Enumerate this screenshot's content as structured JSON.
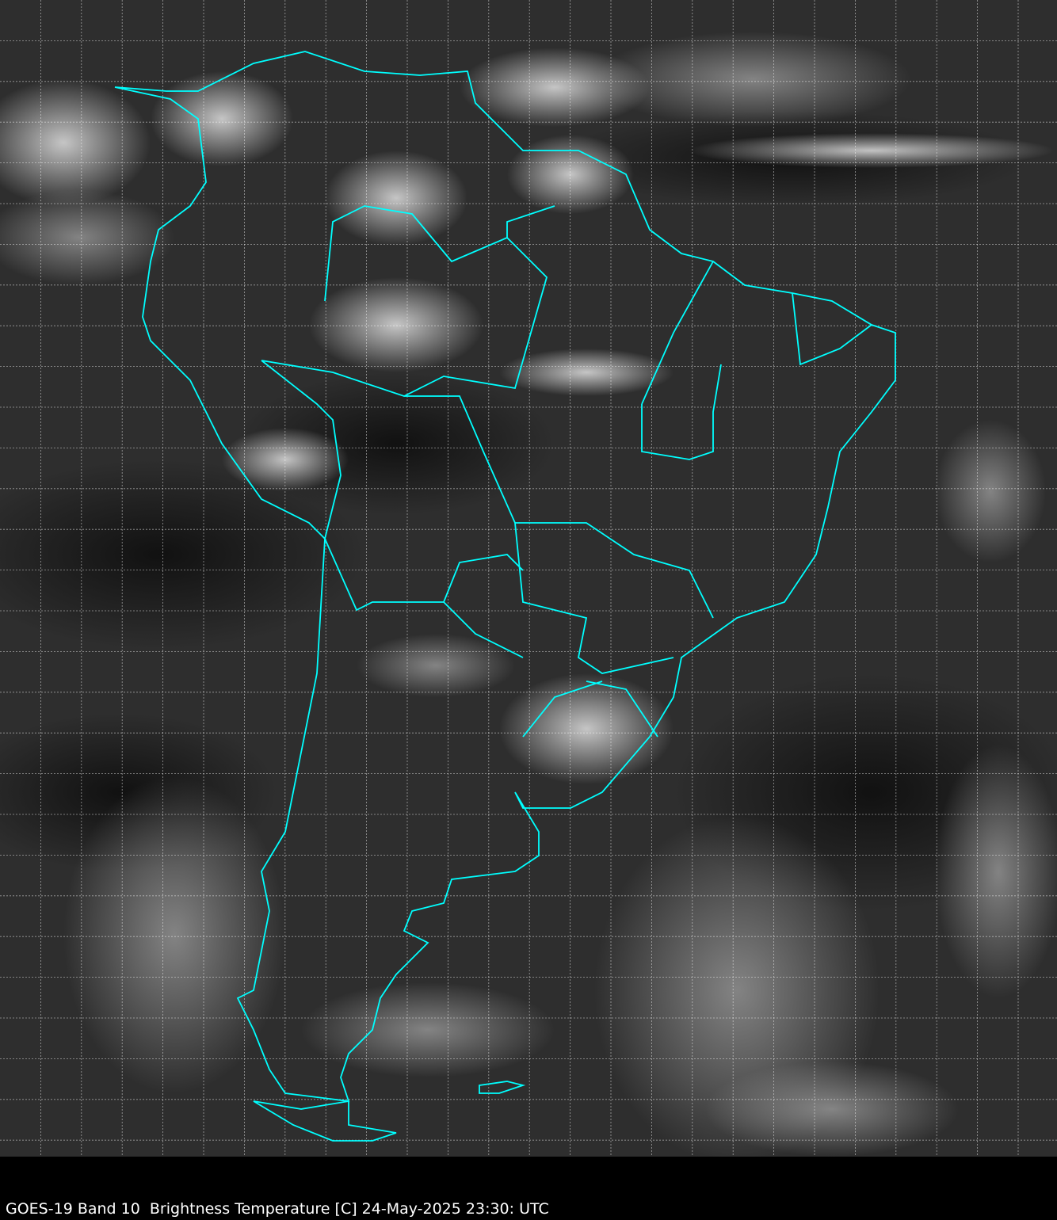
{
  "caption": "GOES-19 Band 10  Brightness Temperature [C] 24-May-2025 23:30: UTC",
  "colors": {
    "coastline": "#00ffff",
    "grid": "#ffffff",
    "background": "#2a2a2a",
    "cloud": "#e8e8e8"
  },
  "imagery": {
    "satellite": "GOES-19",
    "band": "10",
    "colormap": "grayscale",
    "grid": true
  }
}
